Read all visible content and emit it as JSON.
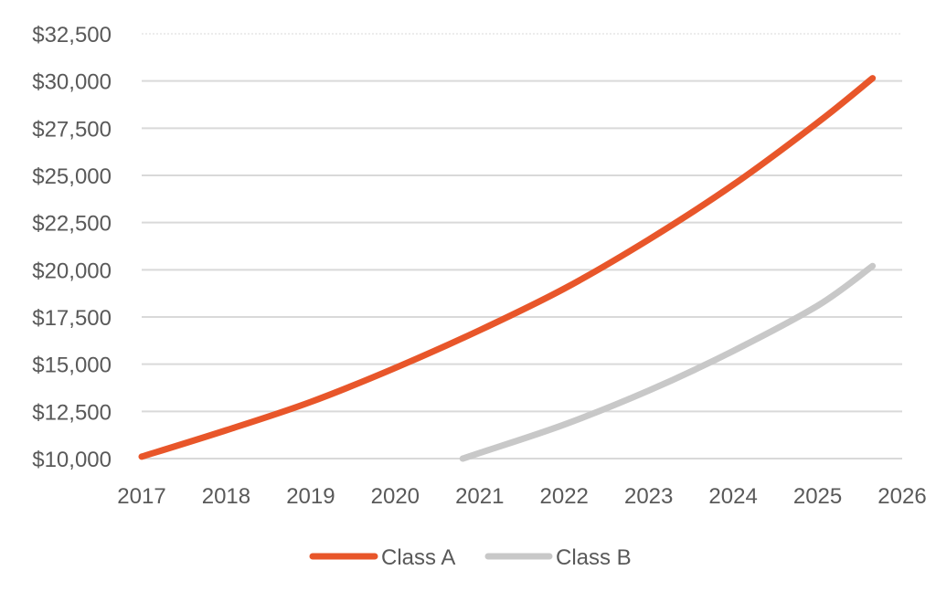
{
  "chart_data": {
    "type": "line",
    "title": "",
    "xlabel": "",
    "ylabel": "",
    "xlim": [
      2017,
      2026
    ],
    "ylim": [
      10000,
      32500
    ],
    "x_ticks": [
      2017,
      2018,
      2019,
      2020,
      2021,
      2022,
      2023,
      2024,
      2025,
      2026
    ],
    "x_tick_labels": [
      "2017",
      "2018",
      "2019",
      "2020",
      "2021",
      "2022",
      "2023",
      "2024",
      "2025",
      "2026"
    ],
    "y_ticks": [
      10000,
      12500,
      15000,
      17500,
      20000,
      22500,
      25000,
      27500,
      30000,
      32500
    ],
    "y_tick_labels": [
      "$10,000",
      "$12,500",
      "$15,000",
      "$17,500",
      "$20,000",
      "$22,500",
      "$25,000",
      "$27,500",
      "$30,000",
      "$32,500"
    ],
    "grid": true,
    "legend_position": "bottom-center",
    "series": [
      {
        "name": "Class A",
        "color": "#E8562A",
        "points": [
          {
            "x": 2017,
            "y": 10100
          },
          {
            "x": 2018,
            "y": 11500
          },
          {
            "x": 2019,
            "y": 13000
          },
          {
            "x": 2020,
            "y": 14800
          },
          {
            "x": 2021,
            "y": 16800
          },
          {
            "x": 2022,
            "y": 19000
          },
          {
            "x": 2023,
            "y": 21600
          },
          {
            "x": 2024,
            "y": 24500
          },
          {
            "x": 2025,
            "y": 27800
          },
          {
            "x": 2025.65,
            "y": 30150
          }
        ]
      },
      {
        "name": "Class B",
        "color": "#C8C8C8",
        "points": [
          {
            "x": 2020.8,
            "y": 10000
          },
          {
            "x": 2021,
            "y": 10300
          },
          {
            "x": 2022,
            "y": 11800
          },
          {
            "x": 2023,
            "y": 13600
          },
          {
            "x": 2024,
            "y": 15700
          },
          {
            "x": 2025,
            "y": 18100
          },
          {
            "x": 2025.65,
            "y": 20200
          }
        ]
      }
    ]
  },
  "legend": {
    "items": [
      {
        "label": "Class A",
        "color": "#E8562A"
      },
      {
        "label": "Class B",
        "color": "#C8C8C8"
      }
    ]
  }
}
